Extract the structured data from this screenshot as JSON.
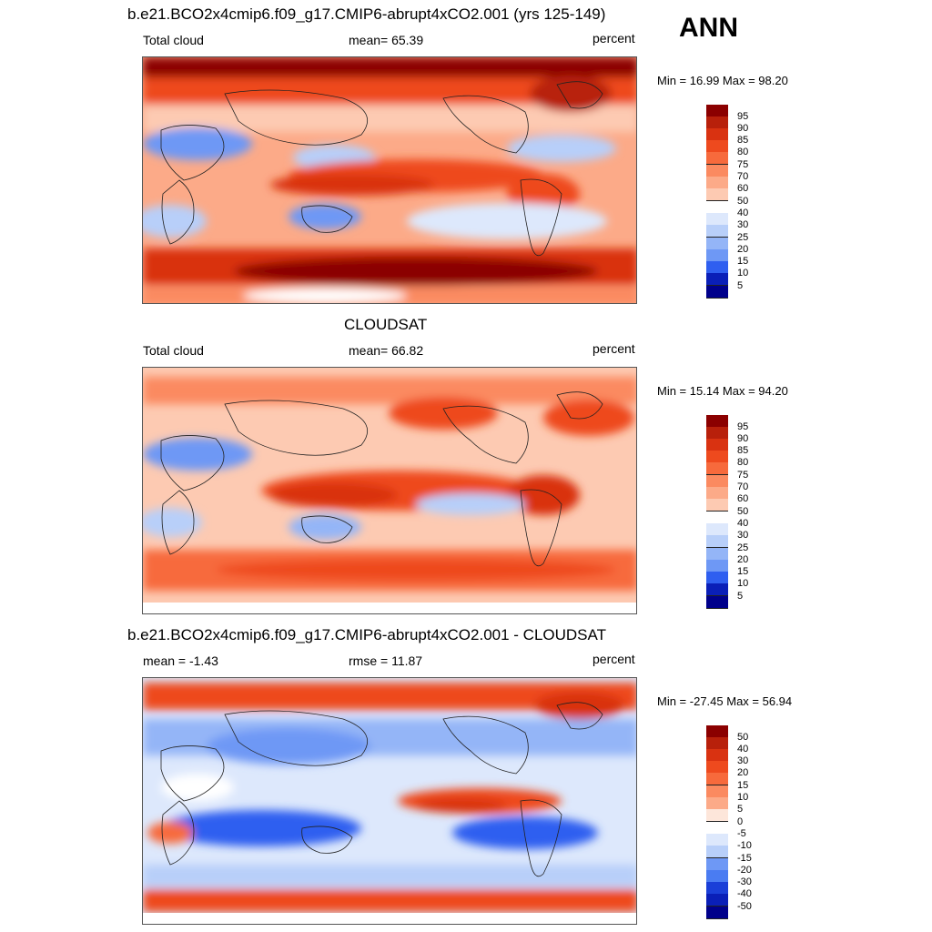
{
  "season": "ANN",
  "colors": {
    "levels_abs": [
      "#00008b",
      "#0a1fb8",
      "#1a3fd8",
      "#2f5ff0",
      "#4a7cf2",
      "#6e98f5",
      "#94b5f7",
      "#b8cff9",
      "#dde8fc",
      "#ffffff",
      "#fde6da",
      "#fdcab2",
      "#fcaa88",
      "#fb8a60",
      "#f76a3c",
      "#ee4a1e",
      "#d93211",
      "#b8200b",
      "#8b0000"
    ],
    "levels_diff": [
      "#00008b",
      "#0a1fb8",
      "#1a3fd8",
      "#2f5ff0",
      "#4a7cf2",
      "#6e98f5",
      "#94b5f7",
      "#b8cff9",
      "#dde8fc",
      "#ffffff",
      "#fde6da",
      "#fdcab2",
      "#fcaa88",
      "#fb8a60",
      "#f76a3c",
      "#ee4a1e",
      "#d93211",
      "#b8200b",
      "#8b0000"
    ]
  },
  "panels": [
    {
      "title": "b.e21.BCO2x4cmip6.f09_g17.CMIP6-abrupt4xCO2.001 (yrs 125-149)",
      "left_label": "Total cloud",
      "center_label": "mean=  65.39",
      "units": "percent",
      "minmax": "Min =  16.99 Max =  98.20",
      "colorbar": [
        "95",
        "90",
        "85",
        "80",
        "75",
        "70",
        "60",
        "50",
        "40",
        "30",
        "25",
        "20",
        "15",
        "10",
        "5"
      ]
    },
    {
      "title": "CLOUDSAT",
      "left_label": "Total cloud",
      "center_label": "mean=  66.82",
      "units": "percent",
      "minmax": "Min =  15.14 Max =  94.20",
      "colorbar": [
        "95",
        "90",
        "85",
        "80",
        "75",
        "70",
        "60",
        "50",
        "40",
        "30",
        "25",
        "20",
        "15",
        "10",
        "5"
      ]
    },
    {
      "title": "b.e21.BCO2x4cmip6.f09_g17.CMIP6-abrupt4xCO2.001 - CLOUDSAT",
      "left_label": "mean =  -1.43",
      "center_label": "rmse =  11.87",
      "units": "percent",
      "minmax": "Min = -27.45 Max =  56.94",
      "colorbar": [
        "50",
        "40",
        "30",
        "20",
        "15",
        "10",
        "5",
        "0",
        "-5",
        "-10",
        "-15",
        "-20",
        "-30",
        "-40",
        "-50"
      ]
    }
  ]
}
